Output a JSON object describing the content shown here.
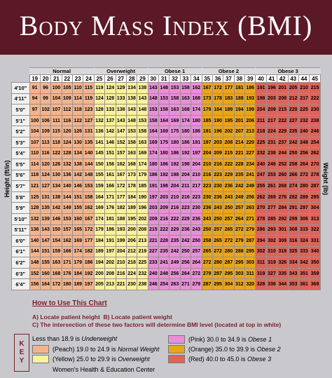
{
  "header": {
    "title": "Body Mass Index (BMI)"
  },
  "table": {
    "row_axis": "Height (ft/in)",
    "col_axis": "Weight (lb)",
    "groups": [
      {
        "label": "Normal",
        "color": "#f3b48c",
        "bmi": [
          19,
          20,
          21,
          22,
          23,
          24
        ]
      },
      {
        "label": "Overweight",
        "color": "#f9f19b",
        "bmi": [
          25,
          26,
          27,
          28,
          29
        ]
      },
      {
        "label": "Obese 1",
        "color": "#e88fd8",
        "bmi": [
          30,
          31,
          32,
          33,
          34
        ]
      },
      {
        "label": "Obese 2",
        "color": "#eaa617",
        "bmi": [
          35,
          36,
          37,
          38,
          39
        ]
      },
      {
        "label": "Obese 3",
        "color": "#df6358",
        "bmi": [
          40,
          41,
          42,
          43,
          44,
          45
        ]
      }
    ],
    "rows": [
      {
        "height": "4'10\"",
        "weights": [
          91,
          96,
          100,
          105,
          110,
          115,
          119,
          124,
          129,
          134,
          138,
          143,
          148,
          153,
          158,
          162,
          167,
          172,
          177,
          181,
          186,
          191,
          196,
          201,
          205,
          210,
          215
        ]
      },
      {
        "height": "4'11\"",
        "weights": [
          94,
          99,
          104,
          109,
          114,
          119,
          124,
          128,
          133,
          138,
          143,
          148,
          153,
          158,
          163,
          168,
          173,
          178,
          183,
          188,
          193,
          198,
          203,
          208,
          212,
          217,
          222
        ]
      },
      {
        "height": "5'0\"",
        "weights": [
          97,
          102,
          107,
          112,
          118,
          123,
          128,
          133,
          138,
          143,
          148,
          153,
          158,
          163,
          168,
          174,
          179,
          184,
          189,
          194,
          199,
          204,
          209,
          215,
          220,
          225,
          230
        ]
      },
      {
        "height": "5'1\"",
        "weights": [
          100,
          106,
          111,
          116,
          122,
          127,
          132,
          137,
          143,
          148,
          153,
          158,
          164,
          169,
          174,
          180,
          185,
          190,
          195,
          201,
          206,
          211,
          217,
          222,
          227,
          232,
          238
        ]
      },
      {
        "height": "5'2\"",
        "weights": [
          104,
          109,
          115,
          120,
          126,
          131,
          136,
          142,
          147,
          153,
          158,
          164,
          169,
          175,
          180,
          186,
          191,
          196,
          202,
          207,
          213,
          218,
          224,
          229,
          235,
          240,
          246
        ]
      },
      {
        "height": "5'3\"",
        "weights": [
          107,
          113,
          118,
          124,
          130,
          135,
          141,
          146,
          152,
          158,
          163,
          169,
          175,
          180,
          186,
          191,
          197,
          203,
          208,
          214,
          220,
          225,
          231,
          237,
          242,
          248,
          254
        ]
      },
      {
        "height": "5'4\"",
        "weights": [
          110,
          116,
          122,
          128,
          134,
          140,
          145,
          151,
          157,
          163,
          169,
          174,
          180,
          186,
          192,
          197,
          204,
          209,
          215,
          221,
          227,
          232,
          238,
          244,
          250,
          256,
          262
        ]
      },
      {
        "height": "5'5\"",
        "weights": [
          114,
          120,
          126,
          132,
          138,
          144,
          150,
          156,
          162,
          168,
          174,
          180,
          186,
          192,
          198,
          204,
          210,
          216,
          222,
          228,
          234,
          240,
          246,
          252,
          258,
          264,
          270
        ]
      },
      {
        "height": "5'6\"",
        "weights": [
          118,
          124,
          130,
          136,
          142,
          148,
          155,
          161,
          167,
          173,
          179,
          186,
          192,
          198,
          204,
          210,
          216,
          223,
          229,
          235,
          241,
          247,
          253,
          260,
          266,
          272,
          278
        ]
      },
      {
        "height": "5'7\"",
        "weights": [
          121,
          127,
          134,
          140,
          146,
          153,
          159,
          166,
          172,
          178,
          185,
          191,
          198,
          204,
          211,
          217,
          223,
          230,
          236,
          242,
          249,
          255,
          261,
          268,
          274,
          280,
          287
        ]
      },
      {
        "height": "5'8\"",
        "weights": [
          125,
          131,
          138,
          144,
          151,
          158,
          164,
          171,
          177,
          184,
          190,
          197,
          203,
          210,
          216,
          223,
          230,
          236,
          243,
          249,
          256,
          262,
          269,
          276,
          282,
          289,
          295
        ]
      },
      {
        "height": "5'9\"",
        "weights": [
          128,
          135,
          142,
          149,
          155,
          162,
          169,
          176,
          182,
          189,
          196,
          203,
          209,
          216,
          223,
          230,
          236,
          243,
          250,
          257,
          263,
          270,
          277,
          284,
          291,
          297,
          304
        ]
      },
      {
        "height": "5'10\"",
        "weights": [
          132,
          139,
          146,
          153,
          160,
          167,
          174,
          181,
          188,
          195,
          202,
          209,
          216,
          222,
          229,
          236,
          243,
          250,
          257,
          264,
          271,
          278,
          285,
          292,
          299,
          306,
          313
        ]
      },
      {
        "height": "5'11\"",
        "weights": [
          136,
          143,
          150,
          157,
          165,
          172,
          179,
          186,
          193,
          200,
          208,
          215,
          222,
          229,
          236,
          243,
          250,
          257,
          265,
          272,
          279,
          286,
          293,
          301,
          308,
          315,
          322
        ]
      },
      {
        "height": "6'0\"",
        "weights": [
          140,
          147,
          154,
          162,
          169,
          177,
          184,
          191,
          199,
          206,
          213,
          221,
          228,
          235,
          242,
          250,
          258,
          265,
          272,
          279,
          287,
          294,
          302,
          309,
          316,
          324,
          331
        ]
      },
      {
        "height": "6'1\"",
        "weights": [
          144,
          151,
          159,
          166,
          174,
          182,
          189,
          197,
          204,
          212,
          219,
          227,
          235,
          242,
          250,
          257,
          265,
          272,
          280,
          288,
          295,
          302,
          310,
          318,
          325,
          333,
          340
        ]
      },
      {
        "height": "6'2\"",
        "weights": [
          148,
          155,
          163,
          171,
          179,
          186,
          194,
          202,
          210,
          218,
          225,
          233,
          241,
          249,
          256,
          264,
          272,
          280,
          287,
          295,
          303,
          311,
          319,
          326,
          334,
          342,
          350
        ]
      },
      {
        "height": "6'3\"",
        "weights": [
          152,
          160,
          168,
          176,
          184,
          192,
          200,
          208,
          216,
          224,
          232,
          240,
          248,
          256,
          264,
          272,
          279,
          287,
          295,
          303,
          311,
          319,
          327,
          335,
          343,
          351,
          359
        ]
      },
      {
        "height": "6'4\"",
        "weights": [
          156,
          164,
          172,
          180,
          189,
          197,
          205,
          213,
          221,
          230,
          238,
          246,
          254,
          263,
          271,
          279,
          287,
          295,
          304,
          312,
          320,
          328,
          336,
          344,
          353,
          361,
          369
        ]
      }
    ]
  },
  "instructions": {
    "title": "How to Use This Chart",
    "steps": [
      "A) Locate patient height",
      "B) Locate patient weight",
      "C) The intersection of these two factors will determine BMI level (located at top in white)"
    ]
  },
  "key": {
    "label": [
      "K",
      "E",
      "Y"
    ],
    "entries": [
      {
        "text": "Less than 18.9 is ",
        "emph": "Underweight",
        "swatch": null
      },
      {
        "text": "(Peach) 19.0 to 24.9 is ",
        "emph": "Normal Weight",
        "swatch": "#f3b48c"
      },
      {
        "text": "(Yellow) 25.0 to 29.9 is ",
        "emph": "Overweight",
        "swatch": "#f9f19b"
      },
      {
        "text": "(Pink) 30.0 to 34.9 is ",
        "emph": "Obese 1",
        "swatch": "#e88fd8"
      },
      {
        "text": "(Orange) 35.0 to 39.9 is ",
        "emph": "Obese 2",
        "swatch": "#eaa617"
      },
      {
        "text": "(Red) 40.0 to 45.0 is ",
        "emph": "Obese 3",
        "swatch": "#df6358"
      }
    ],
    "footer": "Women's Health & Education Center"
  }
}
